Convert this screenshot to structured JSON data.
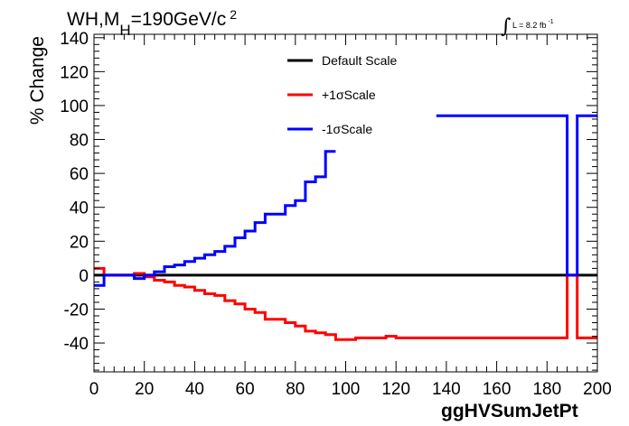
{
  "title": {
    "main": "WH,M",
    "subscript": "H",
    "tail": "=190GeV/c",
    "superscript": "2"
  },
  "lumi": {
    "label": "L = 8.2 fb",
    "exponent": "-1"
  },
  "chart_data": {
    "type": "line",
    "title": "WH,MH=190GeV/c2",
    "xlabel": "ggHVSumJetPt",
    "ylabel": "% Change",
    "xlim": [
      0,
      200
    ],
    "ylim": [
      -57,
      142
    ],
    "x_ticks": [
      0,
      20,
      40,
      60,
      80,
      100,
      120,
      140,
      160,
      180,
      200
    ],
    "y_ticks": [
      -40,
      -20,
      0,
      20,
      40,
      60,
      80,
      100,
      120,
      140
    ],
    "legend_position": "top-center",
    "bin_edges": [
      0,
      4,
      8,
      12,
      16,
      20,
      24,
      28,
      32,
      36,
      40,
      44,
      48,
      52,
      56,
      60,
      64,
      68,
      72,
      76,
      80,
      84,
      88,
      92,
      96,
      100,
      104,
      108,
      112,
      116,
      120,
      124,
      128,
      132,
      136,
      140,
      144,
      148,
      152,
      156,
      160,
      164,
      168,
      172,
      176,
      180,
      184,
      188,
      192,
      196,
      200
    ],
    "series": [
      {
        "name": "Default Scale",
        "color": "#000000",
        "values": [
          0,
          0,
          0,
          0,
          0,
          0,
          0,
          0,
          0,
          0,
          0,
          0,
          0,
          0,
          0,
          0,
          0,
          0,
          0,
          0,
          0,
          0,
          0,
          0,
          0,
          0,
          0,
          0,
          0,
          0,
          0,
          0,
          0,
          0,
          0,
          0,
          0,
          0,
          0,
          0,
          0,
          0,
          0,
          0,
          0,
          0,
          0,
          0,
          0,
          0
        ]
      },
      {
        "name": "+1σScale",
        "color": "#ff0000",
        "values": [
          4,
          0,
          0,
          0,
          1,
          -1,
          -3,
          -4,
          -6,
          -7,
          -9,
          -11,
          -12,
          -15,
          -17,
          -20,
          -22,
          -26,
          -26,
          -28,
          -30,
          -33,
          -34,
          -35,
          -38,
          -38,
          -37,
          -37,
          -37,
          -36,
          -37,
          -37,
          -37,
          -37,
          -37,
          -37,
          -37,
          -37,
          -37,
          -37,
          -37,
          -37,
          -37,
          -37,
          -37,
          -37,
          -37,
          0,
          -37,
          -37
        ]
      },
      {
        "name": "-1σScale",
        "color": "#0000ff",
        "values": [
          -6,
          0,
          0,
          0,
          -2,
          0,
          2,
          5,
          6,
          8,
          10,
          12,
          14,
          17,
          22,
          26,
          31,
          36,
          36,
          41,
          44,
          55,
          58,
          73,
          null,
          null,
          null,
          null,
          null,
          null,
          null,
          null,
          null,
          null,
          94,
          94,
          94,
          94,
          94,
          94,
          94,
          94,
          94,
          94,
          94,
          94,
          94,
          0,
          94,
          94
        ]
      }
    ]
  }
}
